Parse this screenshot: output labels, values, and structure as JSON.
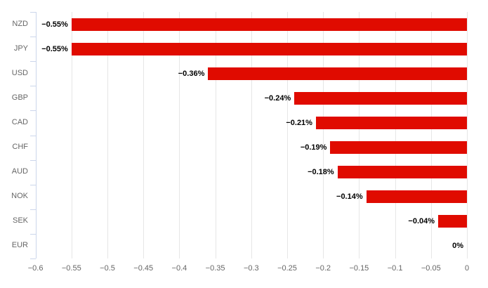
{
  "chart_data": {
    "type": "bar",
    "title": "",
    "xlabel": "",
    "ylabel": "",
    "orientation": "horizontal",
    "grid": true,
    "legend": "none",
    "categories": [
      "NZD",
      "JPY",
      "USD",
      "GBP",
      "CAD",
      "CHF",
      "AUD",
      "NOK",
      "SEK",
      "EUR"
    ],
    "values": [
      -0.55,
      -0.55,
      -0.36,
      -0.24,
      -0.21,
      -0.19,
      -0.18,
      -0.14,
      -0.04,
      0
    ],
    "data_labels": [
      "−0.55%",
      "−0.55%",
      "−0.36%",
      "−0.24%",
      "−0.21%",
      "−0.19%",
      "−0.18%",
      "−0.14%",
      "−0.04%",
      "0%"
    ],
    "xlim": [
      -0.6,
      0
    ],
    "x_ticks": [
      -0.6,
      -0.55,
      -0.5,
      -0.45,
      -0.4,
      -0.35,
      -0.3,
      -0.25,
      -0.2,
      -0.15,
      -0.1,
      -0.05,
      0
    ],
    "x_tick_labels": [
      "−0.6",
      "−0.55",
      "−0.5",
      "−0.45",
      "−0.4",
      "−0.35",
      "−0.3",
      "−0.25",
      "−0.2",
      "−0.15",
      "−0.1",
      "−0.05",
      "0"
    ],
    "colors": {
      "bar": "#e00b00",
      "gridline": "#e6e6e6",
      "axis": "#ccd6eb",
      "tick_label": "#666666",
      "category_label": "#666666",
      "data_label": "#000000",
      "background": "#ffffff"
    }
  }
}
